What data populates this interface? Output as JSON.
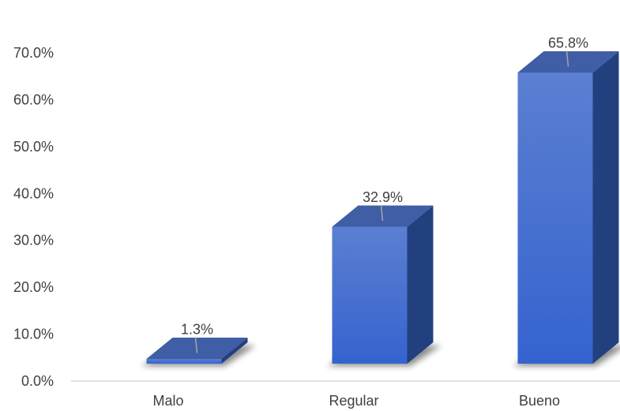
{
  "chart_data": {
    "type": "bar",
    "categories": [
      "Malo",
      "Regular",
      "Bueno"
    ],
    "values": [
      1.3,
      32.9,
      65.8
    ],
    "data_labels": [
      "1.3%",
      "32.9%",
      "65.8%"
    ],
    "yticks": [
      "0.0%",
      "10.0%",
      "20.0%",
      "30.0%",
      "40.0%",
      "50.0%",
      "60.0%",
      "70.0%"
    ],
    "ylim": [
      0,
      70
    ],
    "grid": false,
    "legend": "none",
    "colors": {
      "front_top": "#5b7fd1",
      "front_bottom": "#3563cf",
      "side": "#22407e",
      "top": "#3f5ea6",
      "axis": "#d9d9d9",
      "text": "#404040",
      "leader": "#a6a6a6"
    }
  }
}
